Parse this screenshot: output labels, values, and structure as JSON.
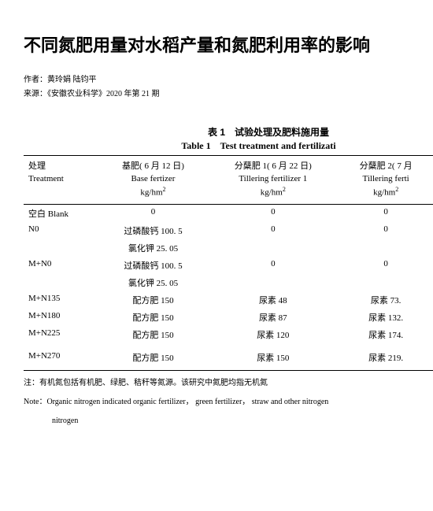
{
  "title": "不同氮肥用量对水稻产量和氮肥利用率的影响",
  "meta": {
    "authors_label": "作者：",
    "authors": "黄玲娟 陆钧平",
    "source_label": "来源：",
    "source": "《安徽农业科学》2020 年第 21 期"
  },
  "table": {
    "caption_cn": "表 1　试验处理及肥料施用量",
    "caption_en": "Table 1　Test treatment and fertilizati",
    "columns": [
      {
        "cn": "处理",
        "en": "Treatment",
        "unit": ""
      },
      {
        "cn": "基肥( 6 月 12 日)",
        "en": "Base fertizer",
        "unit": "kg/hm"
      },
      {
        "cn": "分蘖肥 1( 6 月 22 日)",
        "en": "Tillering fertilizer 1",
        "unit": "kg/hm"
      },
      {
        "cn": "分蘖肥 2( 7 月",
        "en": "Tillering ferti",
        "unit": "kg/hm"
      }
    ],
    "rows": [
      {
        "t": "空白 Blank",
        "c1": "0",
        "c2": "0",
        "c3": "0"
      },
      {
        "t": "N0",
        "c1": "过磷酸钙 100. 5",
        "c2": "0",
        "c3": "0"
      },
      {
        "t": "",
        "c1": "氯化钾 25. 05",
        "c2": "",
        "c3": ""
      },
      {
        "t": "M+N0",
        "c1": "过磷酸钙 100. 5",
        "c2": "0",
        "c3": "0"
      },
      {
        "t": "",
        "c1": "氯化钾 25. 05",
        "c2": "",
        "c3": ""
      },
      {
        "t": "M+N135",
        "c1": "配方肥 150",
        "c2": "尿素 48",
        "c3": "尿素 73."
      },
      {
        "t": "M+N180",
        "c1": "配方肥 150",
        "c2": "尿素 87",
        "c3": "尿素 132."
      },
      {
        "t": "M+N225",
        "c1": "配方肥 150",
        "c2": "尿素 120",
        "c3": "尿素 174."
      },
      {
        "t": "M+N270",
        "c1": "配方肥 150",
        "c2": "尿素 150",
        "c3": "尿素 219."
      }
    ],
    "note_cn": "注：有机氮包括有机肥、绿肥、秸秆等氮源。该研究中氮肥均指无机氮",
    "note_en": "Note：Organic nitrogen indicated organic fertilizer， green fertilizer， straw and other nitrogen",
    "note_en2": "nitrogen"
  },
  "style": {
    "title_fontsize": 22,
    "body_fontsize": 11,
    "meta_fontsize": 10,
    "background": "#ffffff",
    "text_color": "#000000",
    "rule_color": "#000000"
  }
}
